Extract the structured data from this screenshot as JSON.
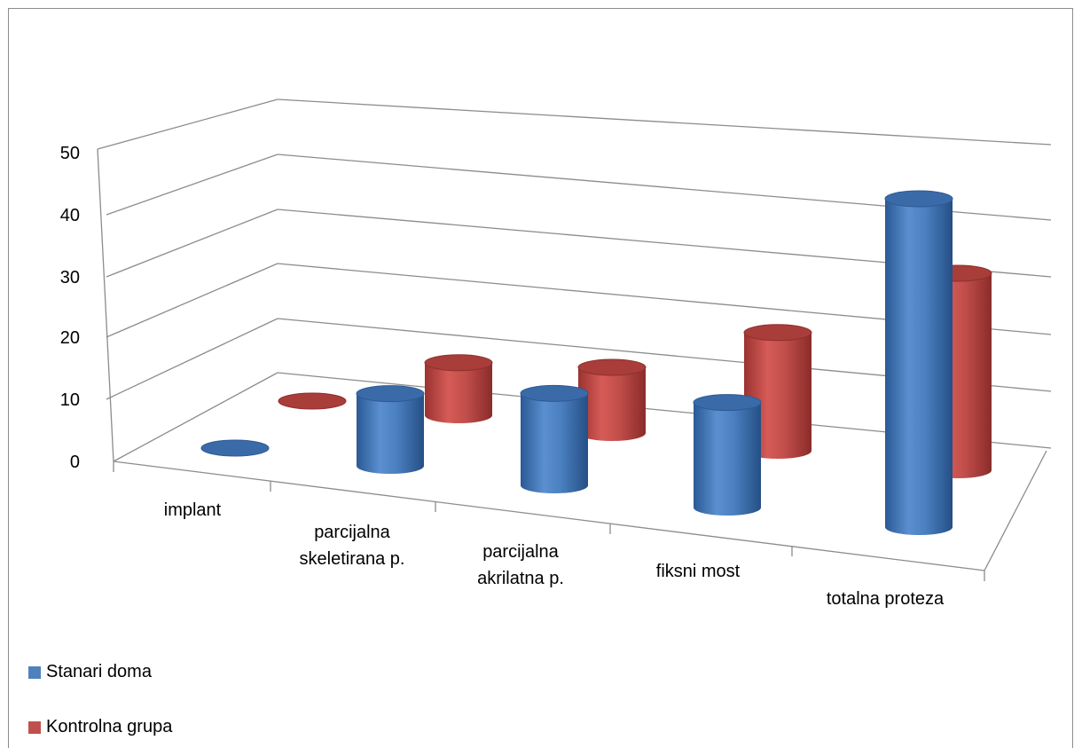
{
  "chart_data": {
    "type": "bar",
    "style": "3d-cylinder",
    "title": "",
    "categories": [
      "implant",
      "parcijalna skeletirana p.",
      "parcijalna akrilatna p.",
      "fiksni most",
      "totalna proteza"
    ],
    "category_lines": [
      [
        "implant"
      ],
      [
        "parcijalna",
        "skeletirana p."
      ],
      [
        "parcijalna",
        "akrilatna p."
      ],
      [
        "fiksni most"
      ],
      [
        "totalna proteza"
      ]
    ],
    "series": [
      {
        "name": "Stanari doma",
        "values": [
          0,
          11,
          14,
          16,
          50
        ],
        "color": "#4F81BD"
      },
      {
        "name": "Kontrolna grupa",
        "values": [
          0,
          8,
          10,
          18,
          30
        ],
        "color": "#C0504D"
      }
    ],
    "ylim": [
      0,
      50
    ],
    "yticks": [
      "0",
      "10",
      "20",
      "30",
      "40",
      "50"
    ],
    "grid": true,
    "legend_position": "bottom-left"
  }
}
